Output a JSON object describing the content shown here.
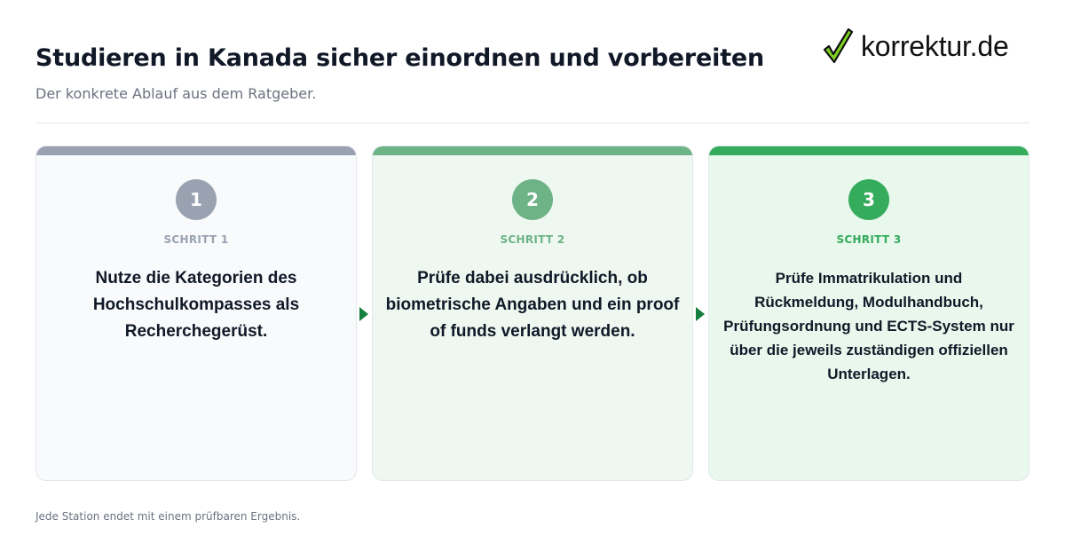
{
  "header": {
    "title": "Studieren in Kanada sicher einordnen und vorbereiten",
    "subtitle": "Der konkrete Ablauf aus dem Ratgeber."
  },
  "logo": {
    "text": "korrektur.de",
    "icon": "checkmark-icon",
    "icon_color": "#7ed321"
  },
  "steps": [
    {
      "number": "1",
      "label": "SCHRITT 1",
      "text": "Nutze die Kategorien des Hochschulkompasses als Recherchegerüst.",
      "accent_color": "#9aa2b1",
      "background_color": "#f8fafc"
    },
    {
      "number": "2",
      "label": "SCHRITT 2",
      "text": "Prüfe dabei ausdrücklich, ob biometrische Angaben und ein proof of funds verlangt werden.",
      "accent_color": "#6db386",
      "background_color": "#eff7f1"
    },
    {
      "number": "3",
      "label": "SCHRITT 3",
      "text": "Prüfe Immatrikulation und Rückmeldung, Modulhandbuch, Prüfungsordnung und ECTS-System nur über die jeweils zuständigen offiziellen Unterlagen.",
      "accent_color": "#35ab5c",
      "background_color": "#e8f8ed"
    }
  ],
  "arrow_color": "#15803d",
  "footer": {
    "note": "Jede Station endet mit einem prüfbaren Ergebnis."
  }
}
